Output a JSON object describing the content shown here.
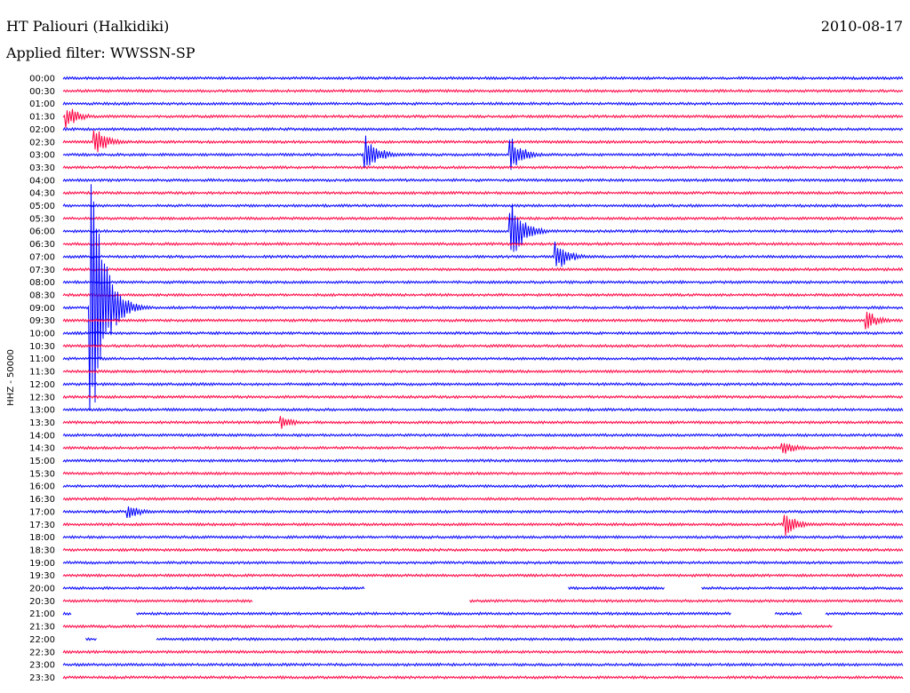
{
  "header": {
    "station": "HT Paliouri (Halkidiki)",
    "date": "2010-08-17",
    "filter": "Applied filter: WWSSN-SP"
  },
  "chart_data": {
    "type": "line",
    "ylabel": "HHZ - 50000",
    "rows": [
      "00:00",
      "00:30",
      "01:00",
      "01:30",
      "02:00",
      "02:30",
      "03:00",
      "03:30",
      "04:00",
      "04:30",
      "05:00",
      "05:30",
      "06:00",
      "06:30",
      "07:00",
      "07:30",
      "08:00",
      "08:30",
      "09:00",
      "09:30",
      "10:00",
      "10:30",
      "11:00",
      "11:30",
      "12:00",
      "12:30",
      "13:00",
      "13:30",
      "14:00",
      "14:30",
      "15:00",
      "15:30",
      "16:00",
      "16:30",
      "17:00",
      "17:30",
      "18:00",
      "18:30",
      "19:00",
      "19:30",
      "20:00",
      "20:30",
      "21:00",
      "21:30",
      "22:00",
      "22:30",
      "23:00",
      "23:30"
    ],
    "colors": [
      "#0000ff",
      "#ff0040"
    ],
    "trace_minutes": 30,
    "events": [
      {
        "row": 3,
        "minute": 0.1,
        "amp": 14
      },
      {
        "row": 6,
        "minute": 10.8,
        "amp": 22
      },
      {
        "row": 6,
        "minute": 16.0,
        "amp": 20
      },
      {
        "row": 12,
        "minute": 16.0,
        "amp": 36
      },
      {
        "row": 14,
        "minute": 17.6,
        "amp": 18
      },
      {
        "row": 18,
        "minute": 1.0,
        "amp": 170
      },
      {
        "row": 5,
        "minute": 1.1,
        "amp": 18
      },
      {
        "row": 19,
        "minute": 28.7,
        "amp": 12
      },
      {
        "row": 35,
        "minute": 25.8,
        "amp": 14
      },
      {
        "row": 29,
        "minute": 25.7,
        "amp": 10
      },
      {
        "row": 34,
        "minute": 2.3,
        "amp": 10
      },
      {
        "row": 27,
        "minute": 7.8,
        "amp": 8
      }
    ],
    "gaps": [
      {
        "row": 40,
        "from": 10.8,
        "to": 18.0
      },
      {
        "row": 40,
        "from": 21.5,
        "to": 22.8
      },
      {
        "row": 41,
        "from": 6.8,
        "to": 14.5
      },
      {
        "row": 42,
        "from": 0.3,
        "to": 2.6
      },
      {
        "row": 42,
        "from": 23.9,
        "to": 25.4
      },
      {
        "row": 42,
        "from": 26.4,
        "to": 27.2
      },
      {
        "row": 43,
        "from": 27.5,
        "to": 30.0
      },
      {
        "row": 44,
        "from": 0.0,
        "to": 0.8
      },
      {
        "row": 44,
        "from": 1.2,
        "to": 3.3
      }
    ]
  }
}
